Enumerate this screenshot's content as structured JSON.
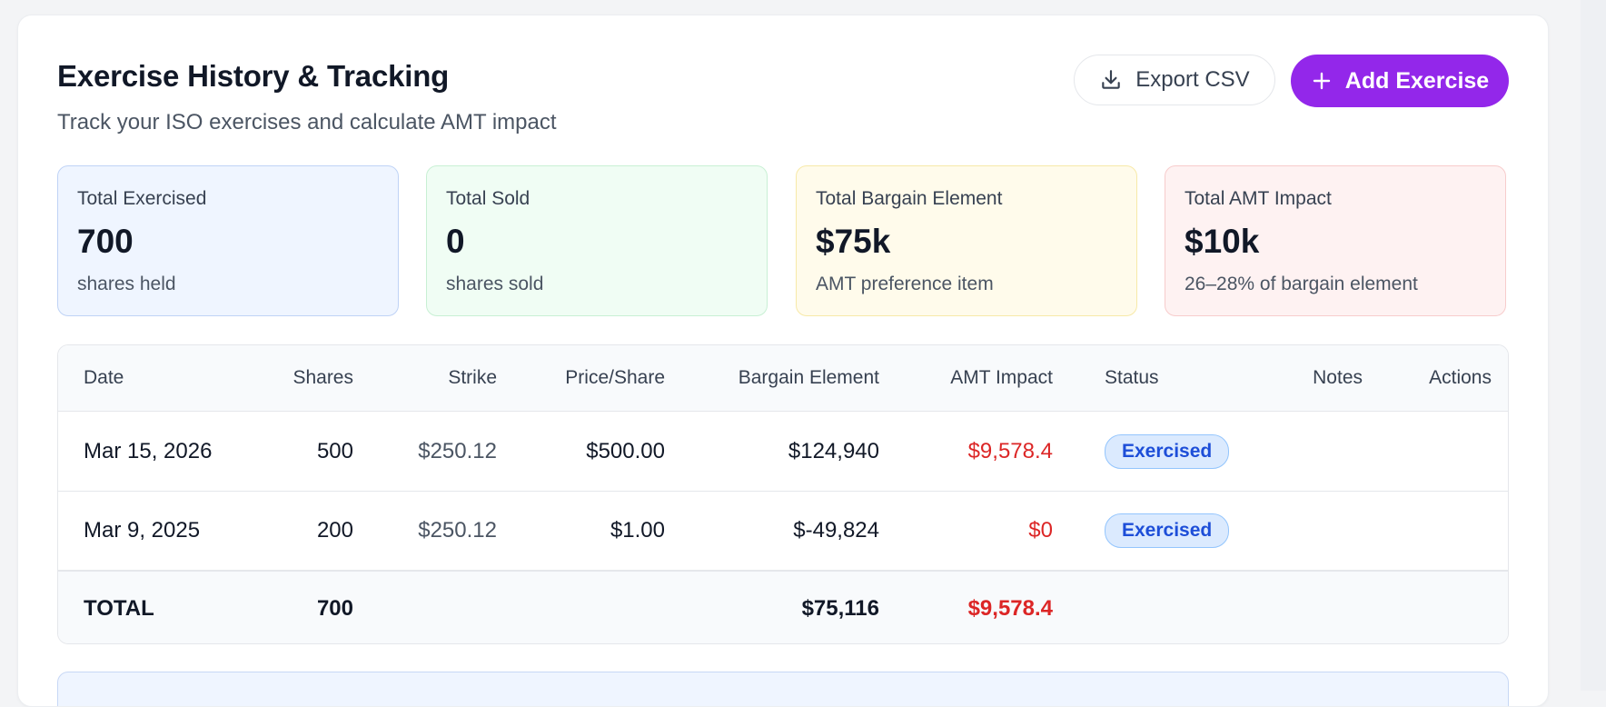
{
  "header": {
    "title": "Exercise History & Tracking",
    "subtitle": "Track your ISO exercises and calculate AMT impact",
    "export_label": "Export CSV",
    "add_label": "Add Exercise"
  },
  "stats": [
    {
      "label": "Total Exercised",
      "value": "700",
      "sub": "shares held"
    },
    {
      "label": "Total Sold",
      "value": "0",
      "sub": "shares sold"
    },
    {
      "label": "Total Bargain Element",
      "value": "$75k",
      "sub": "AMT preference item"
    },
    {
      "label": "Total AMT Impact",
      "value": "$10k",
      "sub": "26–28% of bargain element"
    }
  ],
  "table": {
    "columns": [
      "Date",
      "Shares",
      "Strike",
      "Price/Share",
      "Bargain Element",
      "AMT Impact",
      "Status",
      "Notes",
      "Actions"
    ],
    "rows": [
      {
        "date": "Mar 15, 2026",
        "shares": "500",
        "strike": "$250.12",
        "price": "$500.00",
        "bargain": "$124,940",
        "amt": "$9,578.4",
        "status": "Exercised",
        "notes": "",
        "actions": ""
      },
      {
        "date": "Mar 9, 2025",
        "shares": "200",
        "strike": "$250.12",
        "price": "$1.00",
        "bargain": "$-49,824",
        "amt": "$0",
        "status": "Exercised",
        "notes": "",
        "actions": ""
      }
    ],
    "total": {
      "label": "TOTAL",
      "shares": "700",
      "bargain": "$75,116",
      "amt": "$9,578.4"
    }
  },
  "colors": {
    "accent": "#9327ea",
    "amt_red": "#dc2626",
    "badge_blue": "#1d4ed8"
  },
  "icons": {
    "export": "download-icon",
    "add": "plus-icon"
  }
}
